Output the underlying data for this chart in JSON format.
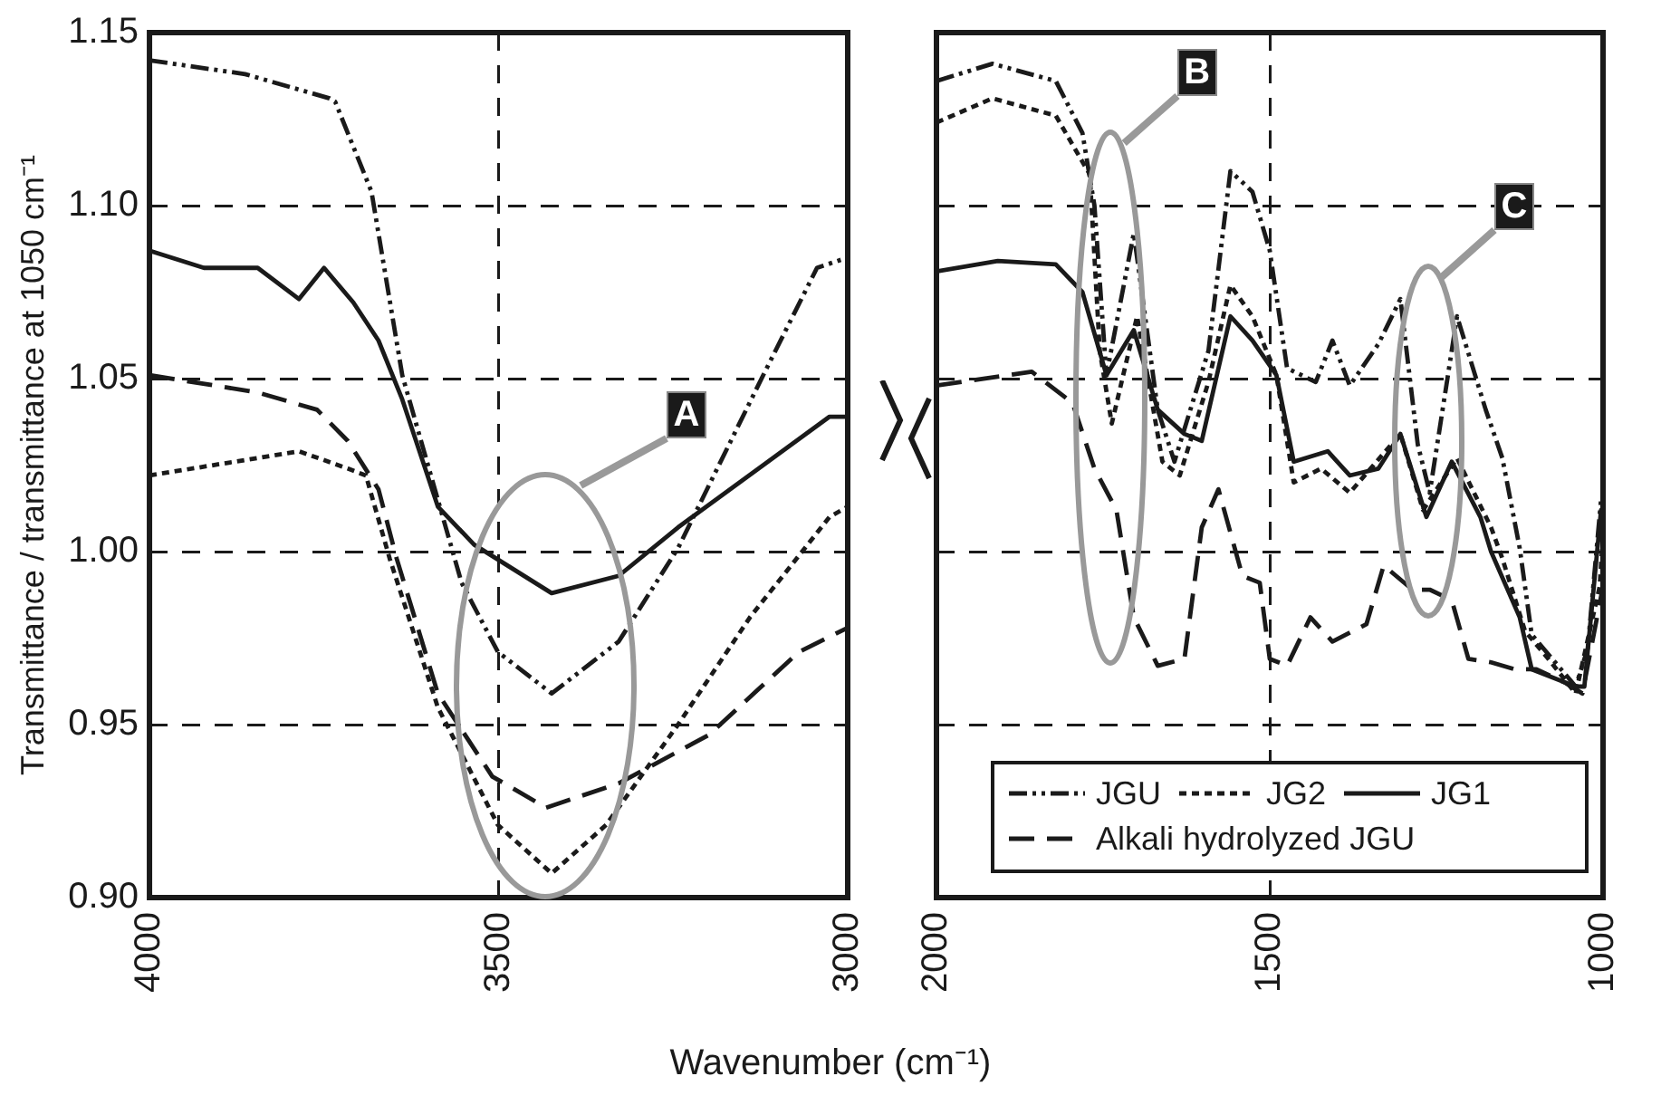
{
  "chart_data": [
    {
      "type": "line",
      "ylabel": "Transmittance / transmittance at 1050 cm⁻¹",
      "xlabel": "Wavenumber (cm⁻¹)",
      "xlim": [
        4000,
        3000
      ],
      "xticks": [
        4000,
        3500,
        3000
      ],
      "ylim": [
        0.9,
        1.15
      ],
      "yticks": [
        {
          "value": 0.9,
          "label": "0.90"
        },
        0.95,
        {
          "value": 1.0,
          "label": "1.00"
        },
        1.05,
        {
          "value": 1.1,
          "label": "1.10"
        },
        1.15
      ],
      "grid": true,
      "annotations": [
        "A"
      ],
      "series": [
        {
          "color": "#1a1a1a",
          "line_style": "dashdotdot",
          "x": [
            4000,
            3863,
            3742,
            3734,
            3682,
            3638,
            3553,
            3501,
            3424,
            3328,
            3243,
            3121,
            3044,
            3000
          ],
          "values": [
            1.142,
            1.138,
            1.131,
            1.13,
            1.104,
            1.051,
            0.991,
            0.971,
            0.959,
            0.974,
            1.001,
            1.051,
            1.082,
            1.085
          ]
        },
        {
          "color": "#1a1a1a",
          "line_style": "dotted",
          "x": [
            4000,
            3786,
            3716,
            3690,
            3656,
            3587,
            3501,
            3424,
            3346,
            3243,
            3140,
            3026,
            3000
          ],
          "values": [
            1.022,
            1.029,
            1.024,
            1.022,
            0.998,
            0.955,
            0.921,
            0.907,
            0.921,
            0.95,
            0.981,
            1.01,
            1.013
          ]
        },
        {
          "color": "#1a1a1a",
          "line_style": "solid",
          "x": [
            4000,
            3922,
            3845,
            3786,
            3750,
            3708,
            3672,
            3638,
            3587,
            3535,
            3424,
            3328,
            3243,
            3026,
            3000
          ],
          "values": [
            1.087,
            1.082,
            1.082,
            1.073,
            1.082,
            1.072,
            1.061,
            1.044,
            1.013,
            1.002,
            0.988,
            0.993,
            1.007,
            1.039,
            1.039
          ]
        },
        {
          "color": "#1a1a1a",
          "line_style": "dashed",
          "x": [
            4000,
            3845,
            3760,
            3716,
            3672,
            3646,
            3587,
            3509,
            3432,
            3328,
            3199,
            3070,
            3010,
            3000
          ],
          "values": [
            1.051,
            1.046,
            1.041,
            1.032,
            1.018,
            0.998,
            0.959,
            0.935,
            0.926,
            0.933,
            0.947,
            0.971,
            0.977,
            0.978
          ]
        }
      ]
    },
    {
      "type": "line",
      "xlim": [
        2000,
        1000
      ],
      "xticks": [
        2000,
        1500,
        1000
      ],
      "ylim": [
        0.9,
        1.15
      ],
      "yticks": [
        0.9,
        0.95,
        1.0,
        1.05,
        1.1,
        1.15
      ],
      "grid": true,
      "tick_labels": "x",
      "legend": "bottom right",
      "annotations": [
        "B",
        "C"
      ],
      "series": [
        {
          "name": "JGU",
          "color": "#1a1a1a",
          "line_style": "dashdotdot",
          "x": [
            2000,
            1916,
            1821,
            1781,
            1763,
            1745,
            1704,
            1668,
            1643,
            1592,
            1559,
            1526,
            1500,
            1474,
            1431,
            1406,
            1380,
            1337,
            1304,
            1278,
            1260,
            1219,
            1176,
            1151,
            1125,
            1107,
            1041,
            1023,
            1003,
            1000
          ],
          "values": [
            1.136,
            1.141,
            1.136,
            1.121,
            1.1,
            1.051,
            1.092,
            1.041,
            1.026,
            1.058,
            1.11,
            1.104,
            1.087,
            1.053,
            1.049,
            1.061,
            1.048,
            1.06,
            1.073,
            1.031,
            1.017,
            1.068,
            1.041,
            1.027,
            1.001,
            0.976,
            0.961,
            0.972,
            1.015,
            1.015
          ]
        },
        {
          "name": "JG2",
          "color": "#1a1a1a",
          "line_style": "dotted",
          "x": [
            2000,
            1916,
            1821,
            1770,
            1755,
            1737,
            1699,
            1661,
            1635,
            1592,
            1559,
            1526,
            1490,
            1464,
            1423,
            1380,
            1304,
            1270,
            1219,
            1168,
            1151,
            1117,
            1082,
            1041,
            1005,
            1000
          ],
          "values": [
            1.124,
            1.131,
            1.126,
            1.109,
            1.058,
            1.037,
            1.068,
            1.026,
            1.022,
            1.049,
            1.077,
            1.068,
            1.051,
            1.02,
            1.024,
            1.017,
            1.034,
            1.012,
            1.027,
            1.007,
            0.998,
            0.977,
            0.969,
            0.959,
            0.99,
            1.005
          ]
        },
        {
          "name": "JG1",
          "color": "#1a1a1a",
          "line_style": "solid",
          "x": [
            2000,
            1908,
            1821,
            1781,
            1745,
            1704,
            1668,
            1628,
            1602,
            1559,
            1526,
            1490,
            1464,
            1413,
            1380,
            1337,
            1304,
            1265,
            1227,
            1184,
            1168,
            1125,
            1107,
            1041,
            1028,
            1003,
            1000
          ],
          "values": [
            1.081,
            1.084,
            1.083,
            1.075,
            1.051,
            1.064,
            1.041,
            1.034,
            1.032,
            1.068,
            1.061,
            1.051,
            1.026,
            1.029,
            1.022,
            1.024,
            1.034,
            1.01,
            1.026,
            1.01,
            1.0,
            0.981,
            0.966,
            0.961,
            0.961,
            1.012,
            1.012
          ]
        },
        {
          "name": "Alkali hydrolyzed JGU",
          "color": "#1a1a1a",
          "line_style": "dashed",
          "x": [
            2000,
            1857,
            1796,
            1763,
            1730,
            1704,
            1668,
            1628,
            1602,
            1577,
            1541,
            1515,
            1500,
            1474,
            1439,
            1406,
            1355,
            1329,
            1286,
            1260,
            1227,
            1202,
            1168,
            1133,
            1100,
            1056,
            1031,
            1005,
            1000
          ],
          "values": [
            1.048,
            1.052,
            1.043,
            1.024,
            1.012,
            0.981,
            0.967,
            0.969,
            1.007,
            1.018,
            0.993,
            0.991,
            0.969,
            0.967,
            0.981,
            0.974,
            0.979,
            0.996,
            0.989,
            0.989,
            0.986,
            0.969,
            0.968,
            0.966,
            0.966,
            0.962,
            0.959,
            0.985,
            0.99
          ]
        }
      ]
    }
  ]
}
